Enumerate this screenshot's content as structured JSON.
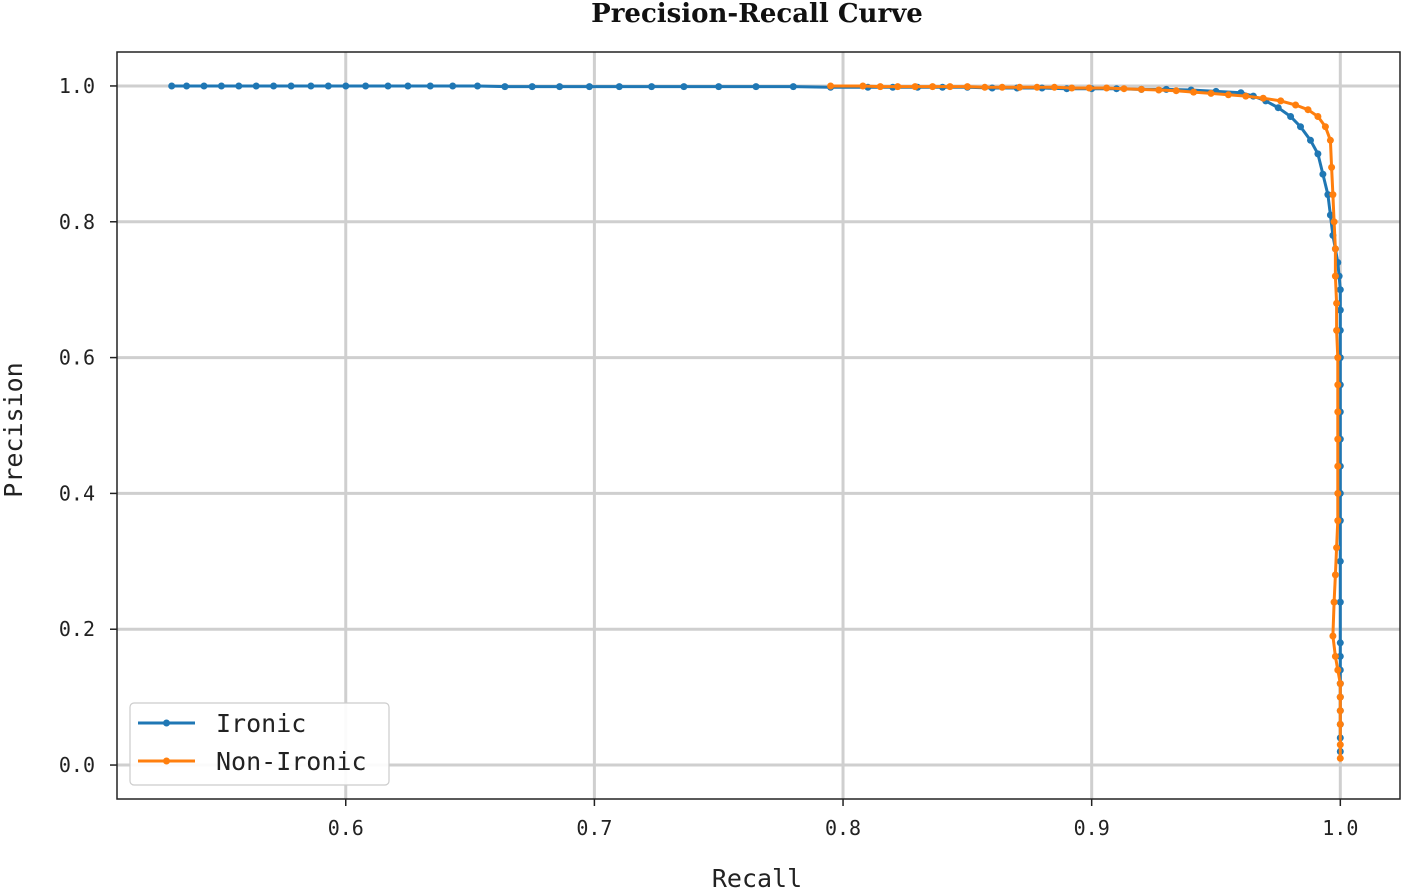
{
  "chart_data": {
    "type": "line",
    "title": "Precision-Recall Curve",
    "xlabel": "Recall",
    "ylabel": "Precision",
    "xlim": [
      0.508,
      1.024
    ],
    "ylim": [
      -0.05,
      1.05
    ],
    "xticks": [
      0.6,
      0.7,
      0.8,
      0.9,
      1.0
    ],
    "xtick_labels": [
      "0.6",
      "0.7",
      "0.8",
      "0.9",
      "1.0"
    ],
    "yticks": [
      0.0,
      0.2,
      0.4,
      0.6,
      0.8,
      1.0
    ],
    "ytick_labels": [
      "0.0",
      "0.2",
      "0.4",
      "0.6",
      "0.8",
      "1.0"
    ],
    "grid": true,
    "legend_position": "lower-left",
    "series": [
      {
        "name": "Ironic",
        "color": "#1f77b4",
        "x": [
          0.53,
          0.536,
          0.543,
          0.55,
          0.557,
          0.564,
          0.571,
          0.578,
          0.586,
          0.593,
          0.6,
          0.608,
          0.617,
          0.625,
          0.634,
          0.643,
          0.653,
          0.664,
          0.675,
          0.686,
          0.698,
          0.71,
          0.723,
          0.736,
          0.75,
          0.765,
          0.78,
          0.795,
          0.81,
          0.82,
          0.83,
          0.84,
          0.85,
          0.86,
          0.87,
          0.88,
          0.89,
          0.9,
          0.91,
          0.92,
          0.93,
          0.94,
          0.95,
          0.96,
          0.965,
          0.97,
          0.975,
          0.98,
          0.984,
          0.988,
          0.991,
          0.993,
          0.995,
          0.996,
          0.997,
          0.998,
          0.999,
          0.9995,
          1.0,
          1.0,
          1.0,
          1.0,
          1.0,
          1.0,
          1.0,
          1.0,
          1.0,
          1.0,
          1.0,
          1.0,
          1.0,
          1.0,
          1.0,
          1.0,
          1.0,
          1.0,
          1.0,
          1.0,
          1.0
        ],
        "y": [
          1.0,
          1.0,
          1.0,
          1.0,
          1.0,
          1.0,
          1.0,
          1.0,
          1.0,
          1.0,
          1.0,
          1.0,
          1.0,
          1.0,
          1.0,
          1.0,
          1.0,
          0.999,
          0.999,
          0.999,
          0.999,
          0.999,
          0.999,
          0.999,
          0.999,
          0.999,
          0.999,
          0.998,
          0.998,
          0.998,
          0.998,
          0.998,
          0.998,
          0.997,
          0.997,
          0.997,
          0.996,
          0.996,
          0.996,
          0.995,
          0.995,
          0.994,
          0.992,
          0.99,
          0.985,
          0.978,
          0.968,
          0.955,
          0.94,
          0.92,
          0.9,
          0.87,
          0.84,
          0.81,
          0.78,
          0.76,
          0.74,
          0.72,
          0.7,
          0.67,
          0.64,
          0.6,
          0.56,
          0.52,
          0.48,
          0.44,
          0.4,
          0.36,
          0.3,
          0.24,
          0.18,
          0.16,
          0.14,
          0.12,
          0.1,
          0.08,
          0.06,
          0.04,
          0.02
        ]
      },
      {
        "name": "Non-Ironic",
        "color": "#ff7f0e",
        "x": [
          0.795,
          0.808,
          0.815,
          0.822,
          0.829,
          0.836,
          0.843,
          0.85,
          0.857,
          0.864,
          0.871,
          0.878,
          0.885,
          0.892,
          0.899,
          0.906,
          0.913,
          0.92,
          0.927,
          0.934,
          0.941,
          0.948,
          0.955,
          0.962,
          0.969,
          0.976,
          0.982,
          0.987,
          0.991,
          0.994,
          0.996,
          0.9965,
          0.997,
          0.9975,
          0.998,
          0.998,
          0.9985,
          0.9985,
          0.999,
          0.999,
          0.999,
          0.999,
          0.999,
          0.999,
          0.999,
          0.9985,
          0.998,
          0.9975,
          0.997,
          0.998,
          0.999,
          1.0,
          1.0,
          1.0,
          1.0,
          1.0,
          1.0
        ],
        "y": [
          1.0,
          1.0,
          0.999,
          0.999,
          0.999,
          0.999,
          0.999,
          0.999,
          0.998,
          0.998,
          0.998,
          0.998,
          0.998,
          0.997,
          0.997,
          0.997,
          0.996,
          0.995,
          0.994,
          0.993,
          0.991,
          0.989,
          0.987,
          0.985,
          0.982,
          0.978,
          0.972,
          0.965,
          0.955,
          0.94,
          0.92,
          0.88,
          0.84,
          0.8,
          0.76,
          0.72,
          0.68,
          0.64,
          0.6,
          0.56,
          0.52,
          0.48,
          0.44,
          0.4,
          0.36,
          0.32,
          0.28,
          0.24,
          0.19,
          0.16,
          0.14,
          0.12,
          0.1,
          0.08,
          0.06,
          0.03,
          0.01
        ]
      }
    ]
  }
}
